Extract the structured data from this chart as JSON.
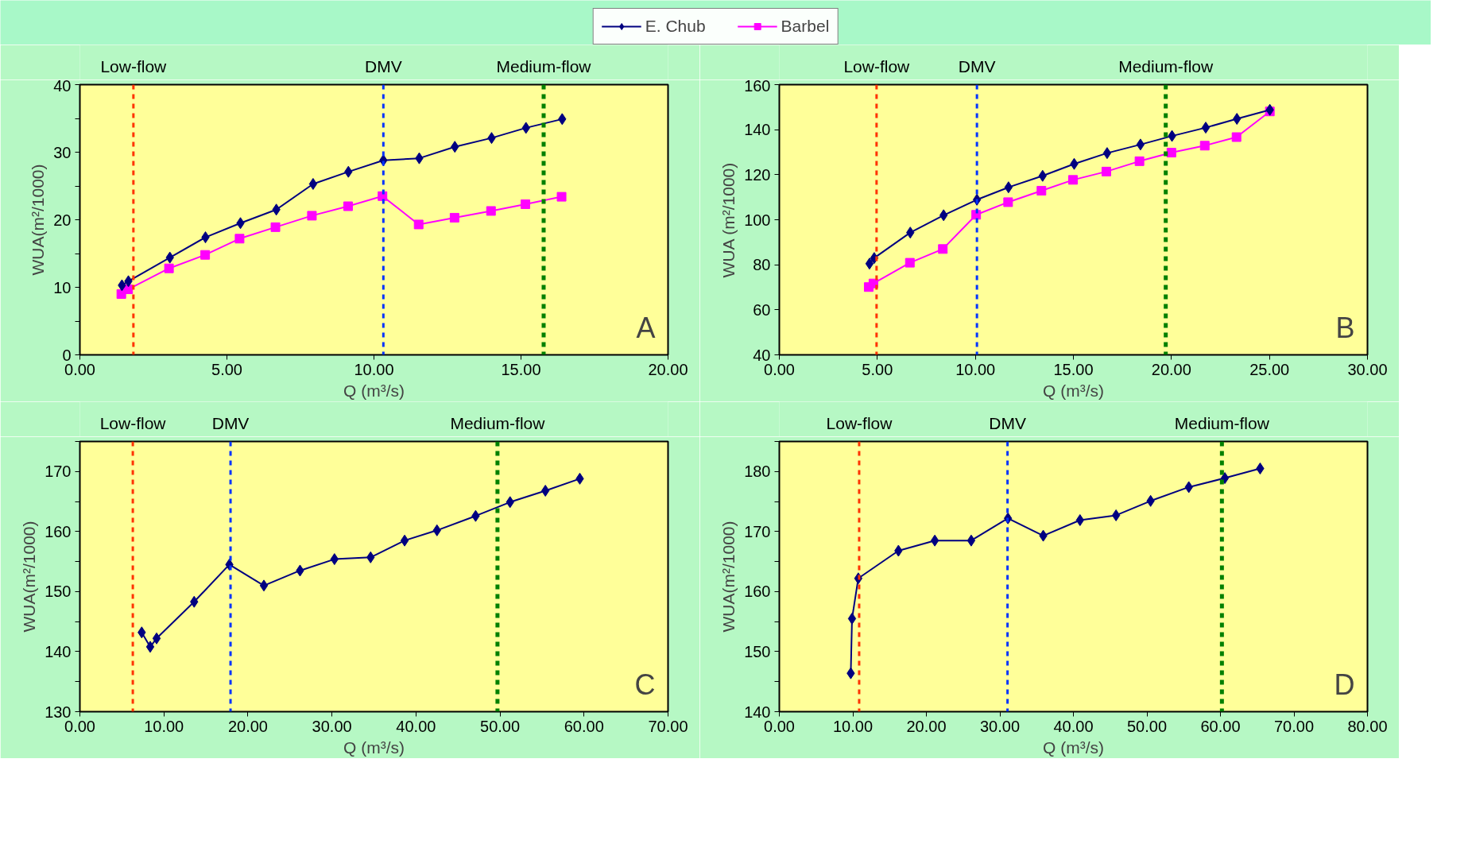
{
  "chart_data": [
    {
      "type": "line",
      "xlabel": "Q (m³/s)",
      "ylabel": "WUA(m²/1000)",
      "annotations": [
        "A"
      ],
      "legend": "top",
      "grid": false,
      "line_style": "solid",
      "xlim": [
        0,
        20
      ],
      "xticks": [
        {
          "value": 0,
          "label": "0.00"
        },
        {
          "value": 5,
          "label": "5.00"
        },
        {
          "value": 10,
          "label": "10.00"
        },
        {
          "value": 15,
          "label": "15.00"
        },
        {
          "value": 20,
          "label": "20.00"
        }
      ],
      "ylim": [
        0,
        40
      ],
      "yticks": [
        0,
        {
          "value": 5,
          "label": null
        },
        10,
        {
          "value": 15,
          "label": null
        },
        20,
        {
          "value": 25,
          "label": null
        },
        30,
        {
          "value": 35,
          "label": null
        },
        40
      ],
      "series": [
        {
          "name": "E. Chub",
          "color": "#000080",
          "marker": "diamond",
          "x": [
            1.43,
            1.65,
            3.06,
            4.27,
            5.46,
            6.68,
            7.93,
            9.13,
            10.32,
            11.54,
            12.75,
            14.0,
            15.17,
            16.4
          ],
          "values": [
            10.3,
            10.9,
            14.4,
            17.4,
            19.5,
            21.5,
            25.3,
            27.1,
            28.8,
            29.1,
            30.8,
            32.1,
            33.6,
            34.9
          ]
        },
        {
          "name": "Barbel",
          "color": "#ff00ff",
          "marker": "square",
          "x": [
            1.41,
            1.64,
            3.03,
            4.26,
            5.43,
            6.65,
            7.89,
            9.12,
            10.29,
            11.52,
            12.74,
            13.98,
            15.15,
            16.38
          ],
          "values": [
            9.0,
            9.7,
            12.8,
            14.8,
            17.2,
            18.9,
            20.6,
            22.0,
            23.5,
            19.3,
            20.3,
            21.3,
            22.3,
            23.4
          ]
        }
      ],
      "ref_lines": [
        {
          "axis": "x",
          "value": 1.82,
          "label": "Low-flow",
          "color": "#ff3300",
          "line_style": "dashed"
        },
        {
          "axis": "x",
          "value": 10.32,
          "label": "DMV",
          "color": "#0033ff",
          "line_style": "dashed"
        },
        {
          "axis": "x",
          "value": 15.77,
          "label": "Medium-flow",
          "color": "#008000",
          "line_style": "dashed"
        }
      ]
    },
    {
      "type": "line",
      "xlabel": "Q (m³/s)",
      "ylabel": "WUA (m²/1000)",
      "annotations": [
        "B"
      ],
      "grid": false,
      "line_style": "solid",
      "xlim": [
        0,
        30
      ],
      "xticks": [
        {
          "value": 0,
          "label": "0.00"
        },
        {
          "value": 5,
          "label": "5.00"
        },
        {
          "value": 10,
          "label": "10.00"
        },
        {
          "value": 15,
          "label": "15.00"
        },
        {
          "value": 20,
          "label": "20.00"
        },
        {
          "value": 25,
          "label": "25.00"
        },
        {
          "value": 30,
          "label": "30.00"
        }
      ],
      "ylim": [
        40,
        160
      ],
      "yticks": [
        40,
        60,
        80,
        100,
        120,
        140,
        160
      ],
      "series": [
        {
          "color": "#000080",
          "marker": "diamond",
          "x": [
            4.6,
            4.84,
            6.68,
            8.38,
            10.08,
            11.69,
            13.43,
            15.04,
            16.72,
            18.42,
            20.03,
            21.75,
            23.34,
            25.02
          ],
          "values": [
            80.5,
            83.0,
            94.3,
            102.0,
            108.9,
            114.4,
            119.5,
            124.8,
            129.6,
            133.4,
            137.2,
            140.9,
            144.8,
            148.8
          ]
        },
        {
          "color": "#ff00ff",
          "marker": "square",
          "x": [
            4.56,
            4.8,
            6.66,
            8.34,
            10.04,
            11.67,
            13.37,
            14.98,
            16.68,
            18.37,
            20.0,
            21.7,
            23.32,
            25.02
          ],
          "values": [
            70.1,
            71.7,
            80.9,
            87.0,
            102.2,
            107.8,
            112.9,
            117.7,
            121.4,
            126.0,
            129.8,
            132.9,
            136.7,
            148.1
          ]
        }
      ],
      "ref_lines": [
        {
          "axis": "x",
          "value": 4.96,
          "label": "Low-flow",
          "color": "#ff3300",
          "line_style": "dashed"
        },
        {
          "axis": "x",
          "value": 10.08,
          "label": "DMV",
          "color": "#0033ff",
          "line_style": "dashed"
        },
        {
          "axis": "x",
          "value": 19.71,
          "label": "Medium-flow",
          "color": "#008000",
          "line_style": "dashed"
        }
      ]
    },
    {
      "type": "line",
      "xlabel": "Q (m³/s)",
      "ylabel": "WUA(m²/1000)",
      "annotations": [
        "C"
      ],
      "grid": false,
      "line_style": "solid",
      "xlim": [
        0,
        70
      ],
      "xticks": [
        {
          "value": 0,
          "label": "0.00"
        },
        {
          "value": 10,
          "label": "10.00"
        },
        {
          "value": 20,
          "label": "20.00"
        },
        {
          "value": 30,
          "label": "30.00"
        },
        {
          "value": 40,
          "label": "40.00"
        },
        {
          "value": 50,
          "label": "50.00"
        },
        {
          "value": 60,
          "label": "60.00"
        },
        {
          "value": 70,
          "label": "70.00"
        }
      ],
      "ylim": [
        130,
        175
      ],
      "yticks": [
        130,
        {
          "value": 135,
          "label": null
        },
        140,
        {
          "value": 145,
          "label": null
        },
        150,
        {
          "value": 155,
          "label": null
        },
        160,
        {
          "value": 165,
          "label": null
        },
        170,
        {
          "value": 175,
          "label": null
        }
      ],
      "series": [
        {
          "color": "#000080",
          "marker": "diamond",
          "x": [
            7.36,
            8.37,
            9.13,
            13.6,
            17.79,
            21.9,
            26.2,
            30.3,
            34.6,
            38.65,
            42.5,
            47.1,
            51.2,
            55.4,
            59.5
          ],
          "values": [
            143.2,
            140.8,
            142.2,
            148.3,
            154.5,
            151.0,
            153.5,
            155.4,
            155.7,
            158.5,
            160.2,
            162.6,
            164.9,
            166.8,
            168.8
          ]
        }
      ],
      "ref_lines": [
        {
          "axis": "x",
          "value": 6.3,
          "label": "Low-flow",
          "color": "#ff3300",
          "line_style": "dashed"
        },
        {
          "axis": "x",
          "value": 17.93,
          "label": "DMV",
          "color": "#0033ff",
          "line_style": "dashed"
        },
        {
          "axis": "x",
          "value": 49.7,
          "label": "Medium-flow",
          "color": "#008000",
          "line_style": "dashed"
        }
      ]
    },
    {
      "type": "line",
      "xlabel": "Q (m³/s)",
      "ylabel": "WUA(m²/1000)",
      "annotations": [
        "D"
      ],
      "grid": false,
      "line_style": "solid",
      "xlim": [
        0,
        80
      ],
      "xticks": [
        {
          "value": 0,
          "label": "0.00"
        },
        {
          "value": 10,
          "label": "10.00"
        },
        {
          "value": 20,
          "label": "20.00"
        },
        {
          "value": 30,
          "label": "30.00"
        },
        {
          "value": 40,
          "label": "40.00"
        },
        {
          "value": 50,
          "label": "50.00"
        },
        {
          "value": 60,
          "label": "60.00"
        },
        {
          "value": 70,
          "label": "70.00"
        },
        {
          "value": 80,
          "label": "80.00"
        }
      ],
      "ylim": [
        140,
        185
      ],
      "yticks": [
        140,
        {
          "value": 145,
          "label": null
        },
        150,
        {
          "value": 155,
          "label": null
        },
        160,
        {
          "value": 165,
          "label": null
        },
        170,
        {
          "value": 175,
          "label": null
        },
        180,
        {
          "value": 185,
          "label": null
        }
      ],
      "series": [
        {
          "color": "#000080",
          "marker": "diamond",
          "x": [
            9.72,
            9.89,
            10.74,
            16.2,
            21.15,
            26.1,
            31.1,
            35.9,
            40.9,
            45.8,
            50.5,
            55.7,
            60.6,
            65.4
          ],
          "values": [
            146.4,
            155.5,
            162.2,
            166.8,
            168.5,
            168.5,
            172.2,
            169.3,
            171.9,
            172.7,
            175.1,
            177.4,
            178.9,
            180.5
          ]
        }
      ],
      "ref_lines": [
        {
          "axis": "x",
          "value": 10.86,
          "label": "Low-flow",
          "color": "#ff3300",
          "line_style": "dashed"
        },
        {
          "axis": "x",
          "value": 31.04,
          "label": "DMV",
          "color": "#0033ff",
          "line_style": "dashed"
        },
        {
          "axis": "x",
          "value": 60.2,
          "label": "Medium-flow",
          "color": "#008000",
          "line_style": "dashed"
        }
      ]
    }
  ]
}
